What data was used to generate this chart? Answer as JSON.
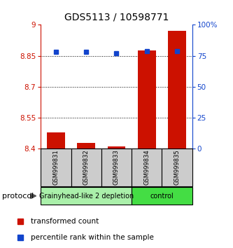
{
  "title": "GDS5113 / 10598771",
  "samples": [
    "GSM999831",
    "GSM999832",
    "GSM999833",
    "GSM999834",
    "GSM999835"
  ],
  "red_values": [
    8.48,
    8.43,
    8.41,
    8.875,
    8.97
  ],
  "blue_values": [
    78,
    78,
    77,
    79,
    79
  ],
  "ylim_left": [
    8.4,
    9.0
  ],
  "ylim_right": [
    0,
    100
  ],
  "yticks_left": [
    8.4,
    8.55,
    8.7,
    8.85,
    9.0
  ],
  "ytick_labels_left": [
    "8.4",
    "8.55",
    "8.7",
    "8.85",
    "9"
  ],
  "yticks_right": [
    0,
    25,
    50,
    75,
    100
  ],
  "ytick_labels_right": [
    "0",
    "25",
    "50",
    "75",
    "100%"
  ],
  "groups": [
    {
      "label": "Grainyhead-like 2 depletion",
      "start": 0,
      "end": 3,
      "color": "#aaf0aa"
    },
    {
      "label": "control",
      "start": 3,
      "end": 5,
      "color": "#44dd44"
    }
  ],
  "protocol_label": "protocol",
  "bar_color_red": "#cc1100",
  "bar_color_blue": "#1144cc",
  "background_color": "#ffffff",
  "sample_box_color": "#cccccc",
  "legend_red": "transformed count",
  "legend_blue": "percentile rank within the sample"
}
